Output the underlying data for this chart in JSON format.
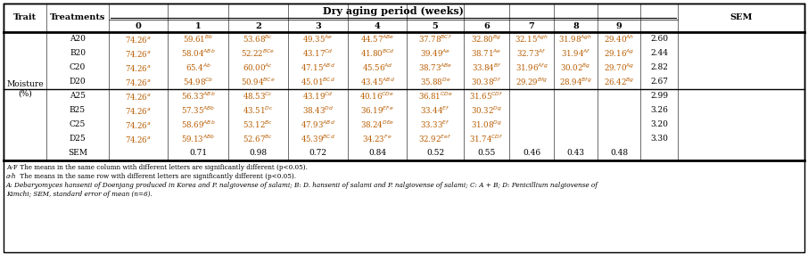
{
  "title": "Dry aging period (weeks)",
  "col_headers": [
    "0",
    "1",
    "2",
    "3",
    "4",
    "5",
    "6",
    "7",
    "8",
    "9",
    "SEM"
  ],
  "trait_label": "Moisture\n(%)",
  "header_bg": "#d4d4d4",
  "border_color": "#000000",
  "data_color": "#b85c00",
  "rows": [
    {
      "treatment": "A20",
      "values": [
        "74.26$^{a}$",
        "59.61$^{Bb}$",
        "53.68$^{Bc}$",
        "49.35$^{Ae}$",
        "44.57$^{ABe}$",
        "37.78$^{BCf}$",
        "32.80$^{Bg}$",
        "32.15$^{Agh}$",
        "31.98$^{Agh}$",
        "29.40$^{Ah}$",
        "2.60"
      ],
      "group": "20"
    },
    {
      "treatment": "B20",
      "values": [
        "74.26$^{a}$",
        "58.04$^{ABb}$",
        "52.22$^{BCe}$",
        "43.17$^{Cd}$",
        "41.80$^{BCd}$",
        "39.49$^{Ae}$",
        "38.71$^{Ae}$",
        "32.73$^{Af}$",
        "31.94$^{Af}$",
        "29.16$^{Ag}$",
        "2.44"
      ],
      "group": "20"
    },
    {
      "treatment": "C20",
      "values": [
        "74.26$^{a}$",
        "65.4$^{Ab}$",
        "60.00$^{Ac}$",
        "47.15$^{ABd}$",
        "45.56$^{Ad}$",
        "38.73$^{ABe}$",
        "33.84$^{Bf}$",
        "31.96$^{Afg}$",
        "30.02$^{Bg}$",
        "29.70$^{Ag}$",
        "2.82"
      ],
      "group": "20"
    },
    {
      "treatment": "D20",
      "values": [
        "74.26$^{a}$",
        "54.98$^{Cb}$",
        "50.94$^{BCe}$",
        "45.01$^{BCd}$",
        "43.45$^{ABd}$",
        "35.88$^{De}$",
        "30.38$^{Df}$",
        "29.29$^{Bfg}$",
        "28.94$^{Bfg}$",
        "26.42$^{Bg}$",
        "2.67"
      ],
      "group": "20"
    },
    {
      "treatment": "A25",
      "values": [
        "74.26$^{a}$",
        "56.33$^{ABb}$",
        "48.53$^{Cc}$",
        "43.19$^{Cd}$",
        "40.16$^{CDe}$",
        "36.81$^{CDe}$",
        "31.65$^{CDf}$",
        "",
        "",
        "",
        "2.99"
      ],
      "group": "25"
    },
    {
      "treatment": "B25",
      "values": [
        "74.26$^{a}$",
        "57.35$^{ABb}$",
        "43.51$^{Dc}$",
        "38.43$^{Dd}$",
        "36.19$^{EFe}$",
        "33.44$^{Ef}$",
        "30.32$^{Dg}$",
        "",
        "",
        "",
        "3.26"
      ],
      "group": "25"
    },
    {
      "treatment": "C25",
      "values": [
        "74.26$^{a}$",
        "58.69$^{ABb}$",
        "53.12$^{Bc}$",
        "47.93$^{ABd}$",
        "38.24$^{DEe}$",
        "33.33$^{Ef}$",
        "31.08$^{Dg}$",
        "",
        "",
        "",
        "3.20"
      ],
      "group": "25"
    },
    {
      "treatment": "D25",
      "values": [
        "74.26$^{a}$",
        "59.13$^{ABb}$",
        "52.67$^{Bc}$",
        "45.39$^{BCd}$",
        "34.23$^{Fe}$",
        "32.92$^{Eef}$",
        "31.74$^{CDf}$",
        "",
        "",
        "",
        "3.30"
      ],
      "group": "25"
    },
    {
      "treatment": "SEM",
      "values": [
        "",
        "0.71",
        "0.98",
        "0.72",
        "0.84",
        "0.52",
        "0.55",
        "0.46",
        "0.43",
        "0.48",
        ""
      ],
      "group": "sem"
    }
  ],
  "footnote1_prefix": "A-F",
  "footnote1_prefix_style": "normal",
  "footnote1_text": " The means in the same column with different letters are significantly different (p<0.05).",
  "footnote2_prefix": "a-h",
  "footnote2_prefix_style": "italic",
  "footnote2_text": " The means in the same row with different letters are significantly different (p<0.05).",
  "footnote3": "A: Debaryomyces hansenii of Doenjang produced in Korea and P. nalgiovense of salami; B: D. hansenii of salami and P. nalgiovense of salami; C: A + B; D: Penicillium nalgiovense of Kimchi; SEM, standard error of mean (n=6)."
}
